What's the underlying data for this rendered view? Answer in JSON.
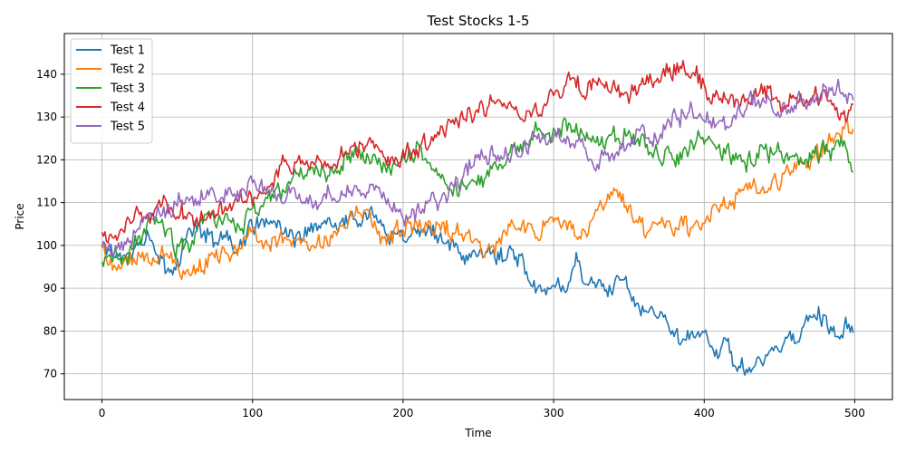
{
  "chart_data": {
    "type": "line",
    "title": "Test Stocks 1-5",
    "xlabel": "Time",
    "ylabel": "Price",
    "xlim": [
      -25,
      525
    ],
    "ylim": [
      64,
      149.5
    ],
    "x_ticks": [
      0,
      100,
      200,
      300,
      400,
      500
    ],
    "y_ticks": [
      70,
      80,
      90,
      100,
      110,
      120,
      130,
      140
    ],
    "grid": true,
    "legend_position": "top-left",
    "x_range": [
      0,
      499
    ],
    "series": [
      {
        "name": "Test 1",
        "color": "#1f77b4",
        "points": [
          [
            0,
            101
          ],
          [
            10,
            97
          ],
          [
            20,
            99
          ],
          [
            30,
            103
          ],
          [
            40,
            96
          ],
          [
            45,
            92
          ],
          [
            55,
            101
          ],
          [
            65,
            105
          ],
          [
            75,
            101
          ],
          [
            90,
            100
          ],
          [
            100,
            104
          ],
          [
            110,
            107
          ],
          [
            120,
            103
          ],
          [
            130,
            101
          ],
          [
            140,
            103
          ],
          [
            150,
            106
          ],
          [
            160,
            105
          ],
          [
            170,
            106
          ],
          [
            180,
            109
          ],
          [
            190,
            104
          ],
          [
            200,
            102
          ],
          [
            210,
            103
          ],
          [
            220,
            103
          ],
          [
            230,
            102
          ],
          [
            235,
            98
          ],
          [
            240,
            97
          ],
          [
            250,
            98
          ],
          [
            260,
            97
          ],
          [
            270,
            98
          ],
          [
            280,
            96
          ],
          [
            285,
            90
          ],
          [
            290,
            89
          ],
          [
            300,
            90
          ],
          [
            310,
            92
          ],
          [
            315,
            97
          ],
          [
            320,
            92
          ],
          [
            330,
            91
          ],
          [
            340,
            90
          ],
          [
            350,
            92
          ],
          [
            355,
            86
          ],
          [
            360,
            85
          ],
          [
            370,
            84
          ],
          [
            380,
            81
          ],
          [
            385,
            79
          ],
          [
            390,
            78
          ],
          [
            400,
            80
          ],
          [
            410,
            75
          ],
          [
            415,
            78
          ],
          [
            420,
            74
          ],
          [
            425,
            72
          ],
          [
            430,
            70
          ],
          [
            435,
            73
          ],
          [
            440,
            74
          ],
          [
            450,
            76
          ],
          [
            460,
            77
          ],
          [
            470,
            83
          ],
          [
            480,
            83
          ],
          [
            485,
            80
          ],
          [
            490,
            79
          ],
          [
            495,
            82
          ],
          [
            499,
            79
          ]
        ]
      },
      {
        "name": "Test 2",
        "color": "#ff7f0e",
        "points": [
          [
            0,
            100
          ],
          [
            5,
            96
          ],
          [
            10,
            94
          ],
          [
            20,
            97
          ],
          [
            30,
            97
          ],
          [
            40,
            98
          ],
          [
            50,
            96
          ],
          [
            60,
            93
          ],
          [
            70,
            96
          ],
          [
            80,
            98
          ],
          [
            90,
            99
          ],
          [
            100,
            101
          ],
          [
            110,
            102
          ],
          [
            120,
            103
          ],
          [
            130,
            101
          ],
          [
            140,
            99
          ],
          [
            150,
            100
          ],
          [
            160,
            105
          ],
          [
            170,
            108
          ],
          [
            180,
            104
          ],
          [
            190,
            102
          ],
          [
            200,
            103
          ],
          [
            210,
            104
          ],
          [
            220,
            105
          ],
          [
            230,
            103
          ],
          [
            240,
            102
          ],
          [
            250,
            100
          ],
          [
            260,
            100
          ],
          [
            270,
            104
          ],
          [
            280,
            105
          ],
          [
            290,
            103
          ],
          [
            300,
            105
          ],
          [
            310,
            104
          ],
          [
            320,
            104
          ],
          [
            330,
            107
          ],
          [
            340,
            111
          ],
          [
            350,
            109
          ],
          [
            360,
            104
          ],
          [
            370,
            106
          ],
          [
            380,
            105
          ],
          [
            390,
            104
          ],
          [
            400,
            106
          ],
          [
            410,
            109
          ],
          [
            420,
            112
          ],
          [
            430,
            115
          ],
          [
            440,
            114
          ],
          [
            450,
            114
          ],
          [
            455,
            119
          ],
          [
            460,
            118
          ],
          [
            470,
            118
          ],
          [
            480,
            124
          ],
          [
            490,
            126
          ],
          [
            499,
            128
          ]
        ]
      },
      {
        "name": "Test 3",
        "color": "#2ca02c",
        "points": [
          [
            0,
            96
          ],
          [
            10,
            97
          ],
          [
            20,
            99
          ],
          [
            30,
            105
          ],
          [
            40,
            105
          ],
          [
            50,
            99
          ],
          [
            60,
            101
          ],
          [
            70,
            106
          ],
          [
            80,
            107
          ],
          [
            90,
            104
          ],
          [
            100,
            107
          ],
          [
            110,
            111
          ],
          [
            120,
            113
          ],
          [
            130,
            116
          ],
          [
            140,
            119
          ],
          [
            150,
            117
          ],
          [
            160,
            121
          ],
          [
            170,
            122
          ],
          [
            180,
            119
          ],
          [
            190,
            118
          ],
          [
            200,
            121
          ],
          [
            210,
            123
          ],
          [
            220,
            119
          ],
          [
            230,
            114
          ],
          [
            240,
            113
          ],
          [
            250,
            116
          ],
          [
            260,
            118
          ],
          [
            270,
            121
          ],
          [
            280,
            124
          ],
          [
            290,
            128
          ],
          [
            300,
            126
          ],
          [
            310,
            129
          ],
          [
            320,
            126
          ],
          [
            330,
            124
          ],
          [
            340,
            125
          ],
          [
            350,
            127
          ],
          [
            360,
            123
          ],
          [
            370,
            121
          ],
          [
            380,
            121
          ],
          [
            390,
            123
          ],
          [
            400,
            126
          ],
          [
            410,
            123
          ],
          [
            420,
            120
          ],
          [
            430,
            120
          ],
          [
            440,
            122
          ],
          [
            450,
            121
          ],
          [
            460,
            121
          ],
          [
            470,
            119
          ],
          [
            480,
            123
          ],
          [
            490,
            124
          ],
          [
            499,
            119
          ]
        ]
      },
      {
        "name": "Test 4",
        "color": "#d62728",
        "points": [
          [
            0,
            102
          ],
          [
            10,
            103
          ],
          [
            20,
            107
          ],
          [
            30,
            107
          ],
          [
            40,
            110
          ],
          [
            50,
            108
          ],
          [
            60,
            107
          ],
          [
            70,
            106
          ],
          [
            80,
            109
          ],
          [
            90,
            112
          ],
          [
            100,
            111
          ],
          [
            110,
            114
          ],
          [
            120,
            119
          ],
          [
            130,
            120
          ],
          [
            140,
            119
          ],
          [
            150,
            118
          ],
          [
            160,
            121
          ],
          [
            170,
            123
          ],
          [
            180,
            124
          ],
          [
            190,
            121
          ],
          [
            200,
            121
          ],
          [
            210,
            123
          ],
          [
            220,
            125
          ],
          [
            230,
            128
          ],
          [
            240,
            130
          ],
          [
            250,
            132
          ],
          [
            260,
            134
          ],
          [
            270,
            133
          ],
          [
            280,
            130
          ],
          [
            290,
            130
          ],
          [
            300,
            136
          ],
          [
            310,
            138
          ],
          [
            320,
            136
          ],
          [
            330,
            138
          ],
          [
            340,
            135
          ],
          [
            350,
            136
          ],
          [
            360,
            137
          ],
          [
            370,
            139
          ],
          [
            380,
            141
          ],
          [
            390,
            141
          ],
          [
            400,
            137
          ],
          [
            410,
            134
          ],
          [
            420,
            133
          ],
          [
            430,
            135
          ],
          [
            440,
            136
          ],
          [
            450,
            133
          ],
          [
            460,
            134
          ],
          [
            470,
            134
          ],
          [
            480,
            134
          ],
          [
            490,
            131
          ],
          [
            499,
            131
          ]
        ]
      },
      {
        "name": "Test 5",
        "color": "#9467bd",
        "points": [
          [
            0,
            100
          ],
          [
            10,
            98
          ],
          [
            20,
            103
          ],
          [
            30,
            106
          ],
          [
            40,
            107
          ],
          [
            50,
            110
          ],
          [
            60,
            112
          ],
          [
            70,
            111
          ],
          [
            80,
            112
          ],
          [
            90,
            111
          ],
          [
            100,
            114
          ],
          [
            110,
            113
          ],
          [
            120,
            111
          ],
          [
            130,
            112
          ],
          [
            140,
            109
          ],
          [
            150,
            112
          ],
          [
            160,
            112
          ],
          [
            170,
            114
          ],
          [
            180,
            113
          ],
          [
            190,
            111
          ],
          [
            200,
            107
          ],
          [
            210,
            109
          ],
          [
            220,
            111
          ],
          [
            230,
            112
          ],
          [
            240,
            117
          ],
          [
            250,
            121
          ],
          [
            260,
            121
          ],
          [
            270,
            120
          ],
          [
            280,
            123
          ],
          [
            290,
            126
          ],
          [
            300,
            124
          ],
          [
            310,
            125
          ],
          [
            320,
            122
          ],
          [
            330,
            120
          ],
          [
            340,
            123
          ],
          [
            350,
            124
          ],
          [
            360,
            125
          ],
          [
            370,
            126
          ],
          [
            380,
            130
          ],
          [
            390,
            131
          ],
          [
            400,
            130
          ],
          [
            410,
            127
          ],
          [
            420,
            130
          ],
          [
            430,
            134
          ],
          [
            440,
            133
          ],
          [
            450,
            132
          ],
          [
            460,
            133
          ],
          [
            470,
            134
          ],
          [
            480,
            137
          ],
          [
            490,
            137
          ],
          [
            499,
            133
          ]
        ]
      }
    ]
  }
}
